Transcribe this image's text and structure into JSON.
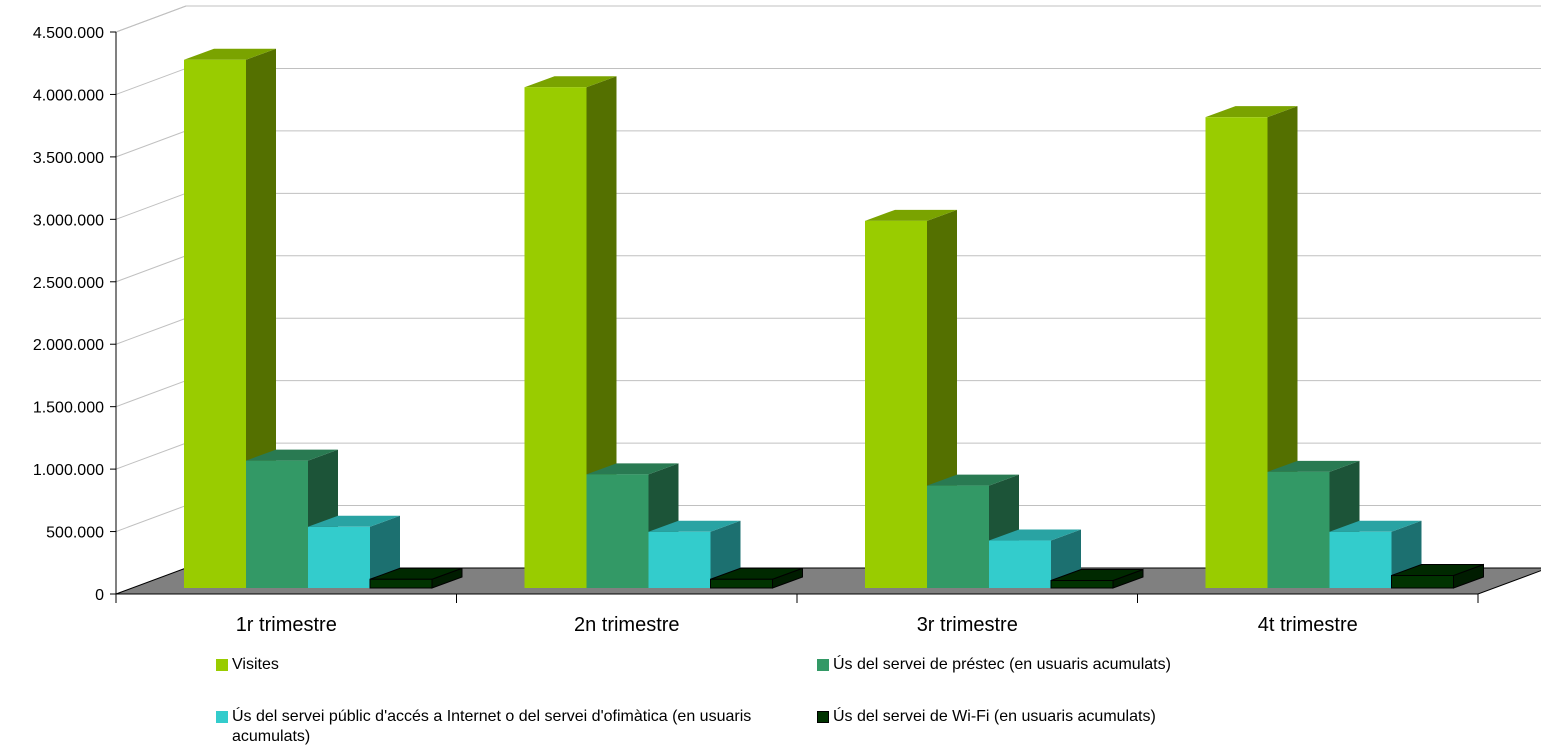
{
  "chart_data": {
    "type": "bar",
    "title": "",
    "xlabel": "",
    "ylabel": "",
    "ylim": [
      0,
      4500000
    ],
    "y_ticks": [
      0,
      500000,
      1000000,
      1500000,
      2000000,
      2500000,
      3000000,
      3500000,
      4000000,
      4500000
    ],
    "y_tick_labels": [
      "0",
      "500.000",
      "1.000.000",
      "1.500.000",
      "2.000.000",
      "2.500.000",
      "3.000.000",
      "3.500.000",
      "4.000.000",
      "4.500.000"
    ],
    "categories": [
      "1r trimestre",
      "2n trimestre",
      "3r trimestre",
      "4t trimestre"
    ],
    "grid": true,
    "style": "3d-clustered",
    "legend_position": "bottom",
    "series": [
      {
        "name": "Visites",
        "color": "#99cc00",
        "values": [
          4230000,
          4010000,
          2940000,
          3770000
        ]
      },
      {
        "name": "Ús del servei de préstec (en usuaris acumulats)",
        "color": "#339966",
        "values": [
          1020000,
          910000,
          820000,
          930000
        ]
      },
      {
        "name": "Ús del servei públic d'accés a Internet o del servei d'ofimàtica (en usuaris acumulats)",
        "color": "#33cccc",
        "values": [
          490000,
          450000,
          380000,
          450000
        ]
      },
      {
        "name": "Ús del servei de Wi-Fi (en usuaris acumulats)",
        "color": "#003300",
        "values": [
          70000,
          70000,
          60000,
          100000
        ]
      }
    ]
  }
}
